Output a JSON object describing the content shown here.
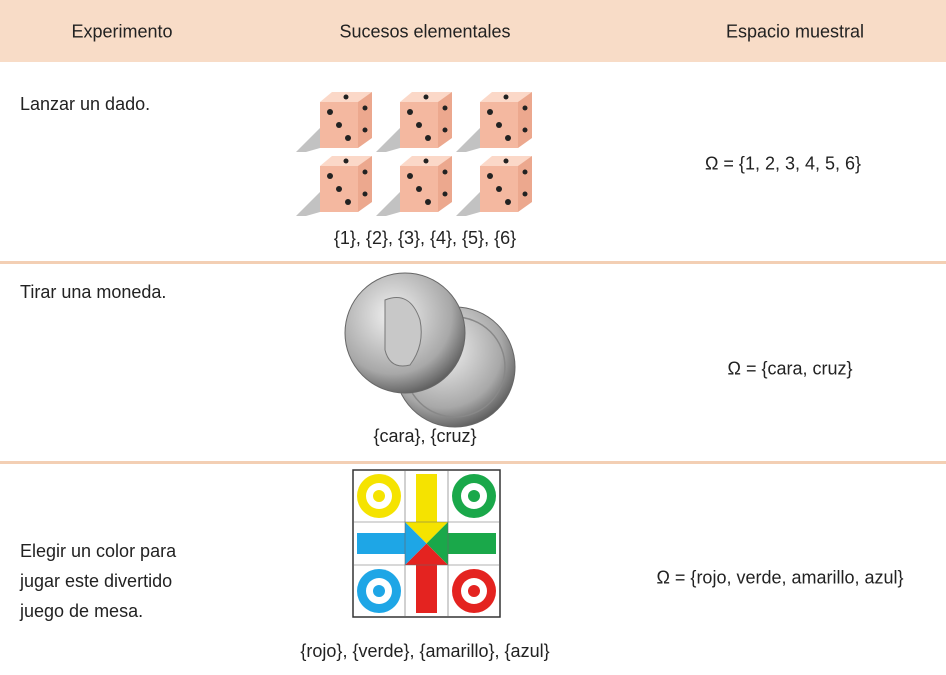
{
  "header": {
    "columns": [
      "Experimento",
      "Sucesos elementales",
      "Espacio muestral"
    ]
  },
  "table": {
    "rows": [
      [
        "Lanzar un dado.",
        "{1}, {2}, {3}, {4}, {5}, {6}",
        "Ω = {1, 2, 3, 4, 5, 6}"
      ],
      [
        "Tirar una moneda.",
        "{cara}, {cruz}",
        "Ω  = {cara, cruz}"
      ],
      [
        "Elegir un color para jugar este divertido juego de mesa.",
        "{rojo}, {verde}, {amarillo}, {azul}",
        "Ω  = {rojo, verde, amarillo, azul}"
      ]
    ]
  }
}
